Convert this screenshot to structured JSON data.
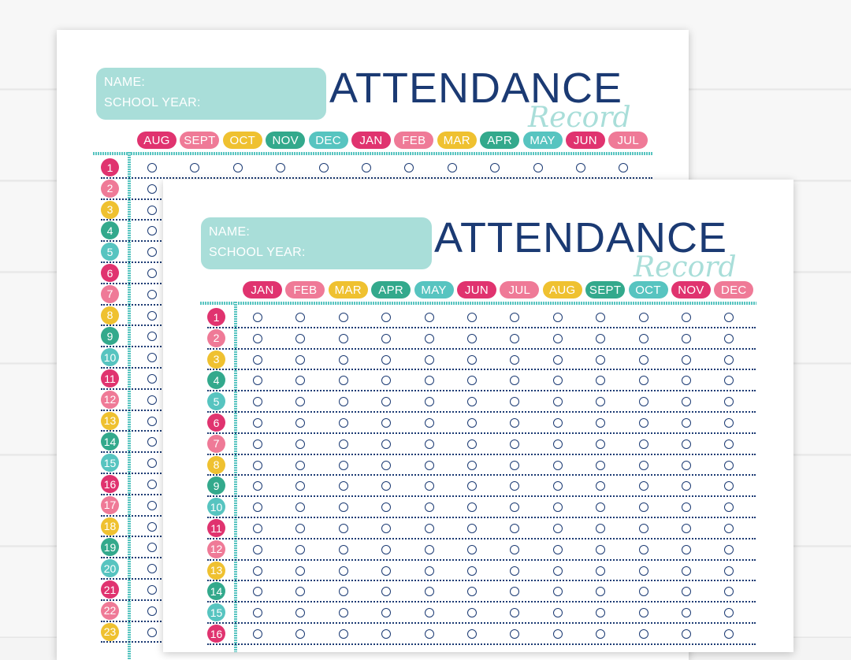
{
  "colors": {
    "pink": "#e0336f",
    "light_pink": "#ef7a97",
    "yellow": "#efc130",
    "green": "#33a98c",
    "teal": "#57c4c0",
    "navy": "#1b3a73",
    "mint": "#a9ded9"
  },
  "sheets": [
    {
      "name_label": "NAME:",
      "school_year_label": "SCHOOL YEAR:",
      "title": "ATTENDANCE",
      "subtitle": "Record",
      "months": [
        "AUG",
        "SEPT",
        "OCT",
        "NOV",
        "DEC",
        "JAN",
        "FEB",
        "MAR",
        "APR",
        "MAY",
        "JUN",
        "JUL"
      ],
      "days": [
        "1",
        "2",
        "3",
        "4",
        "5",
        "6",
        "7",
        "8",
        "9",
        "10",
        "11",
        "12",
        "13",
        "14",
        "15",
        "16",
        "17",
        "18",
        "19",
        "20",
        "21",
        "22",
        "23"
      ]
    },
    {
      "name_label": "NAME:",
      "school_year_label": "SCHOOL YEAR:",
      "title": "ATTENDANCE",
      "subtitle": "Record",
      "months": [
        "JAN",
        "FEB",
        "MAR",
        "APR",
        "MAY",
        "JUN",
        "JUL",
        "AUG",
        "SEPT",
        "OCT",
        "NOV",
        "DEC"
      ],
      "days": [
        "1",
        "2",
        "3",
        "4",
        "5",
        "6",
        "7",
        "8",
        "9",
        "10",
        "11",
        "12",
        "13",
        "14",
        "15",
        "16"
      ]
    }
  ]
}
